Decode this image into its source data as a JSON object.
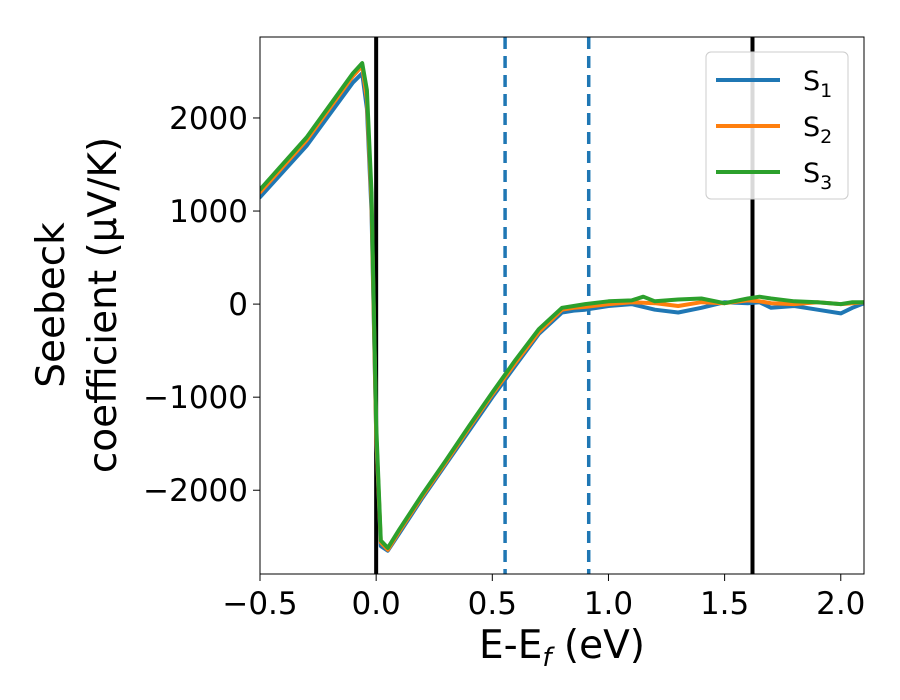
{
  "chart_data": {
    "type": "line",
    "xlabel": "E-E_f (eV)",
    "xlabel_parts": {
      "main": "E-E",
      "sub": "f",
      "unit": " (eV)"
    },
    "ylabel_line1": "Seebeck",
    "ylabel_line2": "coefficient  (μV/K)",
    "xlim": [
      -0.5,
      2.1
    ],
    "ylim": [
      -2900,
      2870
    ],
    "xticks": [
      -0.5,
      0.0,
      0.5,
      1.0,
      1.5,
      2.0
    ],
    "xtick_labels": [
      "−0.5",
      "0.0",
      "0.5",
      "1.0",
      "1.5",
      "2.0"
    ],
    "yticks": [
      -2000,
      -1000,
      0,
      1000,
      2000
    ],
    "ytick_labels": [
      "−2000",
      "−1000",
      "0",
      "1000",
      "2000"
    ],
    "grid": false,
    "legend_position": "top-right",
    "vlines": [
      {
        "x": 0.0,
        "style": "solid",
        "color": "#000000"
      },
      {
        "x": 1.62,
        "style": "solid",
        "color": "#000000"
      },
      {
        "x": 0.555,
        "style": "dashed",
        "color": "#1f77b4"
      },
      {
        "x": 0.915,
        "style": "dashed",
        "color": "#1f77b4"
      }
    ],
    "series": [
      {
        "name": "S_1",
        "legend_parts": {
          "main": "S",
          "sub": "1"
        },
        "color": "#1f77b4",
        "x": [
          -0.5,
          -0.3,
          -0.1,
          -0.06,
          -0.04,
          -0.02,
          0.0,
          0.02,
          0.05,
          0.1,
          0.2,
          0.3,
          0.4,
          0.5,
          0.6,
          0.7,
          0.8,
          0.85,
          0.9,
          1.0,
          1.1,
          1.2,
          1.3,
          1.4,
          1.5,
          1.6,
          1.65,
          1.7,
          1.8,
          1.9,
          2.0,
          2.05,
          2.1
        ],
        "y": [
          1150,
          1700,
          2380,
          2480,
          2100,
          1000,
          -1400,
          -2600,
          -2650,
          -2460,
          -2080,
          -1720,
          -1360,
          -1000,
          -660,
          -320,
          -90,
          -70,
          -60,
          -20,
          0,
          -60,
          -90,
          -40,
          20,
          10,
          20,
          -40,
          -20,
          -60,
          -100,
          -40,
          10
        ]
      },
      {
        "name": "S_2",
        "legend_parts": {
          "main": "S",
          "sub": "2"
        },
        "color": "#ff7f0e",
        "x": [
          -0.5,
          -0.3,
          -0.1,
          -0.06,
          -0.04,
          -0.02,
          0.0,
          0.02,
          0.05,
          0.1,
          0.2,
          0.3,
          0.4,
          0.5,
          0.6,
          0.7,
          0.8,
          0.85,
          0.9,
          1.0,
          1.1,
          1.2,
          1.3,
          1.4,
          1.5,
          1.6,
          1.65,
          1.7,
          1.8,
          1.9,
          2.0,
          2.05,
          2.1
        ],
        "y": [
          1200,
          1760,
          2450,
          2560,
          2200,
          1100,
          -1400,
          -2560,
          -2640,
          -2440,
          -2060,
          -1700,
          -1330,
          -970,
          -630,
          -300,
          -60,
          -40,
          -30,
          0,
          20,
          10,
          -20,
          20,
          10,
          40,
          30,
          10,
          0,
          20,
          0,
          10,
          20
        ]
      },
      {
        "name": "S_3",
        "legend_parts": {
          "main": "S",
          "sub": "3"
        },
        "color": "#2ca02c",
        "x": [
          -0.5,
          -0.3,
          -0.1,
          -0.06,
          -0.04,
          -0.02,
          0.0,
          0.02,
          0.05,
          0.1,
          0.2,
          0.3,
          0.4,
          0.5,
          0.6,
          0.7,
          0.8,
          0.85,
          0.9,
          1.0,
          1.1,
          1.15,
          1.2,
          1.3,
          1.4,
          1.5,
          1.6,
          1.65,
          1.7,
          1.8,
          1.9,
          2.0,
          2.05,
          2.1
        ],
        "y": [
          1230,
          1790,
          2480,
          2590,
          2300,
          1200,
          -1300,
          -2540,
          -2620,
          -2420,
          -2040,
          -1680,
          -1310,
          -950,
          -600,
          -270,
          -40,
          -20,
          0,
          30,
          40,
          80,
          30,
          50,
          60,
          10,
          60,
          80,
          60,
          30,
          20,
          0,
          20,
          20
        ]
      }
    ]
  }
}
